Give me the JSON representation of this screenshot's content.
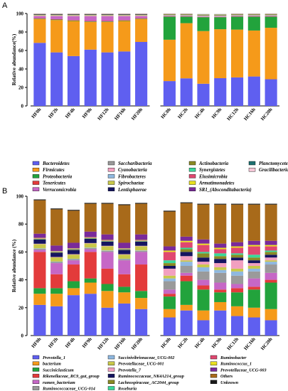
{
  "chart_data": [
    {
      "panel_label": "A",
      "type": "bar",
      "stacked": true,
      "ylabel": "Relative abundance(%)",
      "ylim": [
        0,
        100
      ],
      "yticks": [
        0,
        20,
        40,
        60,
        80,
        100
      ],
      "categories": [
        "HF0h",
        "HF2h",
        "HF4h",
        "HF9h",
        "HF12h",
        "HF16h",
        "HF20h",
        "HC0h",
        "HC2h",
        "HC4h",
        "HC9h",
        "HC12h",
        "HC16h",
        "HC20h"
      ],
      "series": [
        {
          "name": "Bacteroidetes",
          "color": "#5f5ff0",
          "values": [
            69,
            58,
            54,
            61,
            58,
            59,
            70,
            27,
            30,
            24,
            30,
            31,
            32,
            29
          ]
        },
        {
          "name": "Firmicutes",
          "color": "#f59a1a",
          "values": [
            26,
            35,
            38,
            30,
            33,
            33,
            25,
            45,
            60,
            57,
            53,
            52,
            50,
            56
          ]
        },
        {
          "name": "Proteobacteria",
          "color": "#22a33c",
          "values": [
            0.5,
            0.5,
            0.5,
            0.5,
            0.5,
            0.5,
            0.5,
            25,
            7,
            15,
            13,
            14,
            15,
            12
          ]
        },
        {
          "name": "Tenericutes",
          "color": "#e33b3b",
          "values": [
            0.5,
            0.5,
            0.5,
            0.5,
            0.5,
            0.5,
            0.5,
            0.3,
            0.3,
            0.3,
            0.3,
            0.3,
            0.3,
            0.3
          ]
        },
        {
          "name": "Verrucomicrobia",
          "color": "#c667c6",
          "values": [
            2,
            3,
            4,
            5,
            5,
            4,
            2,
            0.5,
            0.5,
            0.5,
            0.5,
            0.5,
            0.5,
            0.5
          ]
        },
        {
          "name": "Saccharibacteria",
          "color": "#9a9a9a",
          "values": [
            0.3,
            0.3,
            0.3,
            0.3,
            0.3,
            0.3,
            0.3,
            0.3,
            0.3,
            0.3,
            0.3,
            0.3,
            0.3,
            0.3
          ]
        },
        {
          "name": "Cyanobacteria",
          "color": "#f2a0c0",
          "values": [
            0.5,
            0.5,
            0.5,
            0.5,
            0.5,
            0.5,
            0.5,
            0.3,
            0.3,
            0.3,
            0.3,
            0.3,
            0.3,
            0.3
          ]
        },
        {
          "name": "Fibrobacteres",
          "color": "#8fb8e0",
          "values": [
            0.2,
            0.2,
            0.2,
            0.2,
            0.2,
            0.2,
            0.2,
            0.2,
            0.2,
            0.2,
            0.2,
            0.2,
            0.2,
            0.2
          ]
        },
        {
          "name": "Spirochaetae",
          "color": "#c8c84a",
          "values": [
            0.5,
            0.5,
            0.5,
            0.5,
            0.5,
            0.5,
            0.5,
            0.3,
            0.3,
            0.3,
            0.3,
            0.3,
            0.3,
            0.3
          ]
        },
        {
          "name": "Lentisphaerae",
          "color": "#151560",
          "values": [
            0.5,
            0.5,
            0.5,
            0.5,
            0.5,
            0.5,
            0.5,
            0.2,
            0.2,
            0.2,
            0.2,
            0.2,
            0.2,
            0.2
          ]
        },
        {
          "name": "Actinobacteria",
          "color": "#8a8a24",
          "values": [
            0.3,
            0.3,
            0.3,
            0.3,
            0.3,
            0.3,
            0.3,
            0.6,
            0.6,
            0.6,
            0.6,
            0.6,
            0.6,
            0.6
          ]
        },
        {
          "name": "Synergistetes",
          "color": "#3ad89a",
          "values": [
            0.2,
            0.2,
            0.2,
            0.2,
            0.2,
            0.2,
            0.2,
            0.2,
            0.2,
            0.2,
            0.2,
            0.2,
            0.2,
            0.2
          ]
        },
        {
          "name": "Elusimicrobia",
          "color": "#e04870",
          "values": [
            0.2,
            0.2,
            0.2,
            0.2,
            0.2,
            0.2,
            0.2,
            0.2,
            0.2,
            0.2,
            0.2,
            0.2,
            0.2,
            0.2
          ]
        },
        {
          "name": "Armatimonadetes",
          "color": "#e8e020",
          "values": [
            0.1,
            0.1,
            0.1,
            0.1,
            0.1,
            0.1,
            0.1,
            0.1,
            0.1,
            0.1,
            0.1,
            0.1,
            0.1,
            0.1
          ]
        },
        {
          "name": "SR1_(Absconditabacteria)",
          "color": "#7a2a9a",
          "values": [
            0.1,
            0.1,
            0.1,
            0.1,
            0.1,
            0.1,
            0.1,
            0.1,
            0.1,
            0.1,
            0.1,
            0.1,
            0.1,
            0.1
          ]
        },
        {
          "name": "Planctomycetes",
          "color": "#1e7070",
          "values": [
            0.1,
            0.1,
            0.1,
            0.1,
            0.1,
            0.1,
            0.1,
            0.1,
            0.1,
            0.1,
            0.1,
            0.1,
            0.1,
            0.1
          ]
        },
        {
          "name": "Gracilibacteria",
          "color": "#f4c6d6",
          "values": [
            0.1,
            0.1,
            0.1,
            0.1,
            0.1,
            0.1,
            0.1,
            0.1,
            0.1,
            0.1,
            0.1,
            0.1,
            0.1,
            0.1
          ]
        }
      ]
    },
    {
      "panel_label": "B",
      "type": "bar",
      "stacked": true,
      "ylabel": "Relative abundance (%)",
      "ylim": [
        0,
        100
      ],
      "yticks": [
        0,
        20,
        40,
        60,
        80,
        100
      ],
      "categories": [
        "HF0h",
        "HF2h",
        "HF4h",
        "HF9h",
        "HF12h",
        "HF16h",
        "HF20h",
        "HC0h",
        "HC2h",
        "HC4h",
        "HC9h",
        "HC12h",
        "HC16h",
        "HC20h"
      ],
      "series": [
        {
          "name": "Prevotella_1",
          "color": "#5f5ff0",
          "values": [
            22,
            21,
            29,
            30,
            20,
            23,
            19,
            13,
            18,
            11,
            18,
            14,
            13,
            11
          ]
        },
        {
          "name": "bacterium",
          "color": "#f59a1a",
          "values": [
            8,
            9,
            5,
            8,
            12,
            8,
            8,
            6,
            4,
            7,
            6,
            7,
            7,
            8
          ]
        },
        {
          "name": "Succiniclasticum",
          "color": "#22a33c",
          "values": [
            4,
            4,
            5,
            3,
            5,
            4,
            5,
            9,
            17,
            15,
            7,
            10,
            13,
            19
          ]
        },
        {
          "name": "Rikenellaceae_RC9_gut_group",
          "color": "#e33b3b",
          "values": [
            26,
            10,
            12,
            19,
            11,
            9,
            19,
            2,
            4,
            3,
            2,
            3,
            2,
            2
          ]
        },
        {
          "name": "rumen_bacterium",
          "color": "#c667c6",
          "values": [
            1.5,
            8,
            3,
            2,
            12,
            10,
            9,
            3,
            2,
            4,
            5,
            3,
            6,
            5
          ]
        },
        {
          "name": "Ruminococcaceae_UCG-014",
          "color": "#9a9a9a",
          "values": [
            0.8,
            0.8,
            0.8,
            0.8,
            0.8,
            0.8,
            0.8,
            6,
            5,
            6,
            7,
            6,
            5,
            6
          ]
        },
        {
          "name": "Succinivibrionaceae_UCG-002",
          "color": "#8fb8e0",
          "values": [
            0.3,
            0.3,
            0.3,
            0.3,
            0.3,
            0.3,
            0.3,
            2,
            3,
            3,
            2,
            3,
            2,
            2
          ]
        },
        {
          "name": "Prevotellaceae_UCG-001",
          "color": "#c8c84a",
          "values": [
            3,
            3,
            3,
            3,
            3,
            3,
            3,
            2,
            1,
            2,
            2,
            2,
            2,
            1
          ]
        },
        {
          "name": "Prevotella_7",
          "color": "#f2a0c0",
          "values": [
            0.3,
            0.3,
            0.3,
            0.3,
            0.3,
            0.3,
            0.3,
            5,
            3,
            2,
            3,
            6,
            2,
            2
          ]
        },
        {
          "name": "Ruminococcaceae_NK4A214_group",
          "color": "#151560",
          "values": [
            3,
            3,
            3,
            3,
            3,
            3,
            3,
            2,
            3,
            3,
            3,
            2,
            2,
            2
          ]
        },
        {
          "name": "Lachnospiraceae_AC2044_group",
          "color": "#8a8a24",
          "values": [
            0.3,
            0.3,
            0.3,
            0.3,
            0.3,
            0.3,
            0.3,
            2,
            2,
            3,
            2,
            2,
            2,
            2
          ]
        },
        {
          "name": "Roseburia",
          "color": "#3ad89a",
          "values": [
            0.3,
            0.3,
            0.3,
            0.3,
            0.3,
            0.3,
            0.3,
            2,
            1,
            1,
            2,
            1,
            2,
            1
          ]
        },
        {
          "name": "Ruminobacter",
          "color": "#e04870",
          "values": [
            0.3,
            0.3,
            0.3,
            0.3,
            0.3,
            0.3,
            0.3,
            6,
            4,
            5,
            3,
            4,
            6,
            3
          ]
        },
        {
          "name": "Ruminococcus_1",
          "color": "#e8e020",
          "values": [
            0.3,
            0.3,
            0.3,
            0.3,
            0.3,
            0.3,
            0.3,
            1,
            1,
            1,
            1,
            1,
            1,
            1
          ]
        },
        {
          "name": "Prevotellaceae_UCG-003",
          "color": "#7a2a9a",
          "values": [
            3,
            4,
            4,
            4,
            4,
            4,
            4,
            3,
            3,
            3,
            3,
            3,
            3,
            3
          ]
        },
        {
          "name": "Others",
          "color": "#a86a1a",
          "values": [
            24,
            26,
            23,
            20,
            22,
            27,
            22,
            25,
            24,
            25,
            28,
            27,
            26,
            26
          ]
        },
        {
          "name": "Unknown",
          "color": "#1a1a1a",
          "values": [
            0.6,
            0.6,
            0.6,
            0.6,
            0.6,
            0.6,
            0.6,
            0.6,
            0.6,
            0.6,
            0.6,
            0.6,
            0.6,
            0.6
          ]
        }
      ]
    }
  ]
}
